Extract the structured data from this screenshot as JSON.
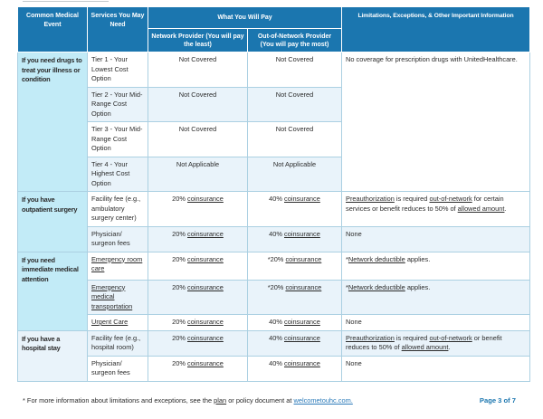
{
  "colors": {
    "header_blue": "#1b76af",
    "event_cell_cyan": "#c2ebf7",
    "alt_row_blue": "#e9f3fa",
    "table_border_blue": "#abd0e2",
    "hyperlink_blue": "#2a7ab9",
    "page_label_blue": "#1b76af"
  },
  "table": {
    "headers": {
      "event": "Common Medical Event",
      "services": "Services You May Need",
      "pay": "What You Will Pay",
      "network": "Network Provider (You will pay the least)",
      "out_of_network": "Out-of-Network Provider (You will pay the most)",
      "limitations": "Limitations, Exceptions, & Other Important Information"
    },
    "sections": [
      {
        "event": "If you need drugs to treat your illness or condition",
        "limits": [
          {
            "t": "No coverage for prescription drugs with UnitedHealthcare."
          }
        ],
        "rows": [
          {
            "service": [
              {
                "t": "Tier 1 - Your Lowest Cost Option"
              }
            ],
            "network": [
              {
                "t": "Not Covered"
              }
            ],
            "oon": [
              {
                "t": "Not Covered"
              }
            ]
          },
          {
            "service": [
              {
                "t": "Tier 2 - Your Mid-Range Cost Option"
              }
            ],
            "network": [
              {
                "t": "Not Covered"
              }
            ],
            "oon": [
              {
                "t": "Not Covered"
              }
            ]
          },
          {
            "service": [
              {
                "t": "Tier 3 - Your Mid-Range Cost Option"
              }
            ],
            "network": [
              {
                "t": "Not Covered"
              }
            ],
            "oon": [
              {
                "t": "Not Covered"
              }
            ]
          },
          {
            "service": [
              {
                "t": "Tier 4 - Your Highest Cost Option"
              }
            ],
            "network": [
              {
                "t": "Not Applicable"
              }
            ],
            "oon": [
              {
                "t": "Not Applicable"
              }
            ]
          }
        ]
      },
      {
        "event": "If you have outpatient surgery",
        "rows": [
          {
            "service": [
              {
                "t": "Facility fee (e.g., ambulatory surgery center)"
              }
            ],
            "network": [
              {
                "t": "20% "
              },
              {
                "t": "coinsurance",
                "u": true
              }
            ],
            "oon": [
              {
                "t": "40% "
              },
              {
                "t": "coinsurance",
                "u": true
              }
            ],
            "limits": [
              {
                "t": "Preauthorization",
                "u": true
              },
              {
                "t": " is required "
              },
              {
                "t": "out-of-network",
                "u": true
              },
              {
                "t": " for certain services or benefit reduces to 50% of "
              },
              {
                "t": "allowed amount",
                "u": true
              },
              {
                "t": "."
              }
            ]
          },
          {
            "service": [
              {
                "t": "Physician/ surgeon fees"
              }
            ],
            "network": [
              {
                "t": "20% "
              },
              {
                "t": "coinsurance",
                "u": true
              }
            ],
            "oon": [
              {
                "t": "40% "
              },
              {
                "t": "coinsurance",
                "u": true
              }
            ],
            "limits": [
              {
                "t": "None"
              }
            ]
          }
        ]
      },
      {
        "event": "If you need immediate medical attention",
        "rows": [
          {
            "service": [
              {
                "t": "Emergency room care",
                "u": true
              }
            ],
            "network": [
              {
                "t": "20% "
              },
              {
                "t": "coinsurance",
                "u": true
              }
            ],
            "oon": [
              {
                "t": "*20% "
              },
              {
                "t": "coinsurance",
                "u": true
              }
            ],
            "limits": [
              {
                "t": "*"
              },
              {
                "t": "Network deductible",
                "u": true
              },
              {
                "t": " applies."
              }
            ]
          },
          {
            "service": [
              {
                "t": "Emergency medical transportation",
                "u": true
              }
            ],
            "network": [
              {
                "t": "20% "
              },
              {
                "t": "coinsurance",
                "u": true
              }
            ],
            "oon": [
              {
                "t": "*20% "
              },
              {
                "t": "coinsurance",
                "u": true
              }
            ],
            "limits": [
              {
                "t": "*"
              },
              {
                "t": "Network deductible",
                "u": true
              },
              {
                "t": " applies."
              }
            ]
          },
          {
            "service": [
              {
                "t": "Urgent Care",
                "u": true
              }
            ],
            "network": [
              {
                "t": "20% "
              },
              {
                "t": "coinsurance",
                "u": true
              }
            ],
            "oon": [
              {
                "t": "40% "
              },
              {
                "t": "coinsurance",
                "u": true
              }
            ],
            "limits": [
              {
                "t": "None"
              }
            ]
          }
        ]
      },
      {
        "event": "If you have a hospital stay",
        "rows": [
          {
            "service": [
              {
                "t": "Facility fee (e.g., hospital room)"
              }
            ],
            "network": [
              {
                "t": "20% "
              },
              {
                "t": "coinsurance",
                "u": true
              }
            ],
            "oon": [
              {
                "t": "40% "
              },
              {
                "t": "coinsurance",
                "u": true
              }
            ],
            "limits": [
              {
                "t": "Preauthorization",
                "u": true
              },
              {
                "t": " is required "
              },
              {
                "t": "out-of-network",
                "u": true
              },
              {
                "t": " or benefit reduces to 50% of "
              },
              {
                "t": "allowed amount",
                "u": true
              },
              {
                "t": "."
              }
            ]
          },
          {
            "service": [
              {
                "t": "Physician/ surgeon fees"
              }
            ],
            "network": [
              {
                "t": "20% "
              },
              {
                "t": "coinsurance",
                "u": true
              }
            ],
            "oon": [
              {
                "t": "40% "
              },
              {
                "t": "coinsurance",
                "u": true
              }
            ],
            "limits": [
              {
                "t": "None"
              }
            ]
          }
        ]
      }
    ]
  },
  "footer": {
    "note": [
      {
        "t": "* For more information about limitations and exceptions, see the "
      },
      {
        "t": "plan",
        "u": true
      },
      {
        "t": " or policy document at "
      },
      {
        "t": "welcometouhc.com.",
        "link": true
      }
    ],
    "page": "Page 3 of 7"
  }
}
